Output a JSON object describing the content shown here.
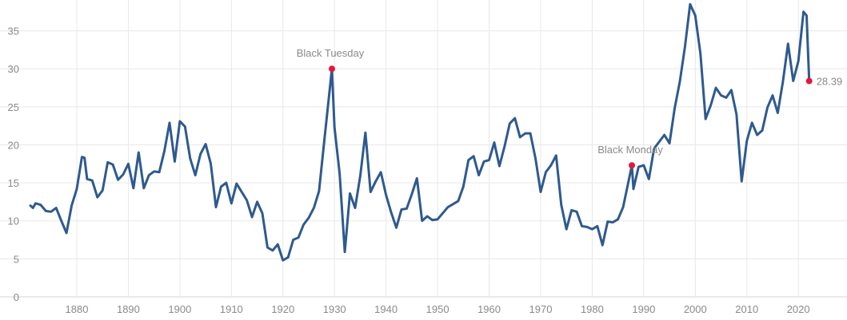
{
  "chart_data": {
    "type": "line",
    "title": "",
    "xlabel": "",
    "ylabel": "",
    "xlim": [
      1871,
      2022.3
    ],
    "ylim": [
      0,
      38
    ],
    "grid": true,
    "y_ticks": [
      0,
      5,
      10,
      15,
      20,
      25,
      30,
      35
    ],
    "x_ticks": [
      1880,
      1890,
      1900,
      1910,
      1920,
      1930,
      1940,
      1950,
      1960,
      1970,
      1980,
      1990,
      2000,
      2010,
      2020
    ],
    "series": [
      {
        "color": "#2f5a8f",
        "x": [
          1871,
          1871.5,
          1872,
          1873,
          1874,
          1875,
          1876,
          1877,
          1878,
          1879,
          1880,
          1881,
          1881.5,
          1882,
          1883,
          1884,
          1885,
          1886,
          1887,
          1888,
          1889,
          1890,
          1891,
          1892,
          1893,
          1894,
          1895,
          1896,
          1897,
          1898,
          1899,
          1900,
          1901,
          1902,
          1903,
          1904,
          1905,
          1906,
          1907,
          1908,
          1909,
          1910,
          1911,
          1912,
          1913,
          1914,
          1915,
          1916,
          1917,
          1918,
          1919,
          1920,
          1921,
          1922,
          1923,
          1924,
          1925,
          1926,
          1927,
          1928,
          1929.5,
          1930,
          1931,
          1932,
          1933,
          1934,
          1935,
          1936,
          1937,
          1938,
          1939,
          1940,
          1941,
          1942,
          1943,
          1944,
          1945,
          1946,
          1947,
          1948,
          1949,
          1950,
          1951,
          1952,
          1953,
          1954,
          1955,
          1956,
          1957,
          1958,
          1959,
          1960,
          1961,
          1962,
          1963,
          1964,
          1965,
          1966,
          1967,
          1968,
          1969,
          1970,
          1971,
          1972,
          1973,
          1974,
          1975,
          1976,
          1977,
          1978,
          1979,
          1980,
          1981,
          1982,
          1983,
          1984,
          1985,
          1986,
          1987.7,
          1988,
          1989,
          1990,
          1991,
          1992,
          1993,
          1994,
          1995,
          1996,
          1997,
          1998,
          1999,
          2000,
          2001,
          2002,
          2003,
          2004,
          2005,
          2006,
          2007,
          2008,
          2009,
          2010,
          2011,
          2012,
          2013,
          2014,
          2015,
          2016,
          2017,
          2018,
          2019,
          2020,
          2021,
          2021.6,
          2022.1
        ],
        "y": [
          12.0,
          11.7,
          12.3,
          12.1,
          11.3,
          11.2,
          11.7,
          10.0,
          8.4,
          12.0,
          14.2,
          18.4,
          18.3,
          15.5,
          15.3,
          13.1,
          14.0,
          17.7,
          17.4,
          15.4,
          16.1,
          17.5,
          14.3,
          19.0,
          14.3,
          16.0,
          16.5,
          16.4,
          19.2,
          22.9,
          17.8,
          23.1,
          22.4,
          18.2,
          16.0,
          18.8,
          20.1,
          17.5,
          11.8,
          14.5,
          15.0,
          12.3,
          14.9,
          13.8,
          12.7,
          10.5,
          12.5,
          11.0,
          6.5,
          6.1,
          6.9,
          4.8,
          5.2,
          7.5,
          7.8,
          9.5,
          10.4,
          11.7,
          13.9,
          20.4,
          30.0,
          22.3,
          16.2,
          5.9,
          13.6,
          11.7,
          15.9,
          21.6,
          13.8,
          15.2,
          16.4,
          13.4,
          11.1,
          9.1,
          11.5,
          11.6,
          13.5,
          15.6,
          10.0,
          10.6,
          10.1,
          10.2,
          11.0,
          11.8,
          12.2,
          12.6,
          14.5,
          18.0,
          18.5,
          16.0,
          17.8,
          18.0,
          20.3,
          17.2,
          19.8,
          22.8,
          23.5,
          21.0,
          21.5,
          21.5,
          18.2,
          13.8,
          16.4,
          17.3,
          18.6,
          12.1,
          8.9,
          11.4,
          11.2,
          9.3,
          9.2,
          8.9,
          9.3,
          6.8,
          9.9,
          9.8,
          10.2,
          11.8,
          17.3,
          14.2,
          17.1,
          17.3,
          15.5,
          19.5,
          20.4,
          21.3,
          20.2,
          24.8,
          28.3,
          32.9,
          38.5,
          37.0,
          32.0,
          23.4,
          25.2,
          27.5,
          26.5,
          26.2,
          27.2,
          24.0,
          15.2,
          20.5,
          22.9,
          21.3,
          21.9,
          24.9,
          26.5,
          24.2,
          28.3,
          33.3,
          28.4,
          31.0,
          37.5,
          37.0,
          28.39
        ]
      }
    ],
    "annotations": [
      {
        "label": "Black Tuesday",
        "x": 1929.5,
        "y": 30.0
      },
      {
        "label": "Black Monday",
        "x": 1987.7,
        "y": 17.3
      }
    ],
    "end_point": {
      "x": 2022.1,
      "y": 28.39,
      "label": "28.39"
    },
    "marker_color": "#e3173e"
  }
}
